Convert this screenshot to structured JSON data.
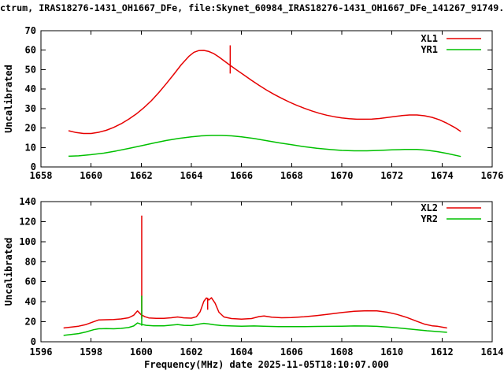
{
  "title": "ctrum, IRAS18276-1431_OH1667_DFe, file:Skynet_60984_IRAS18276-1431_OH1667_DFe_141267_91749.",
  "colors": {
    "background": "#ffffff",
    "text": "#000000",
    "xl_line": "#e60000",
    "yr_line": "#00c000"
  },
  "chart_data": [
    {
      "type": "line",
      "title": "",
      "xlabel": "",
      "ylabel": "Uncalibrated",
      "xlim": [
        1658,
        1676
      ],
      "ylim": [
        0,
        70
      ],
      "xticks": [
        1658,
        1660,
        1662,
        1664,
        1666,
        1668,
        1670,
        1672,
        1674,
        1676
      ],
      "yticks": [
        0,
        10,
        20,
        30,
        40,
        50,
        60,
        70
      ],
      "grid": false,
      "legend": {
        "position": "top-right",
        "entries": [
          {
            "label": "XL1",
            "color": "#e60000"
          },
          {
            "label": "YR1",
            "color": "#00c000"
          }
        ]
      },
      "series": [
        {
          "name": "XL1",
          "color": "#e60000",
          "points": [
            [
              1659.1,
              18.6
            ],
            [
              1659.4,
              17.7
            ],
            [
              1659.7,
              17.2
            ],
            [
              1660.0,
              17.2
            ],
            [
              1660.3,
              17.8
            ],
            [
              1660.6,
              18.8
            ],
            [
              1660.9,
              20.3
            ],
            [
              1661.2,
              22.2
            ],
            [
              1661.5,
              24.5
            ],
            [
              1661.8,
              27.2
            ],
            [
              1662.1,
              30.4
            ],
            [
              1662.4,
              34.0
            ],
            [
              1662.7,
              38.2
            ],
            [
              1663.0,
              42.8
            ],
            [
              1663.3,
              47.6
            ],
            [
              1663.6,
              52.6
            ],
            [
              1663.9,
              56.8
            ],
            [
              1664.1,
              58.9
            ],
            [
              1664.3,
              59.8
            ],
            [
              1664.5,
              59.9
            ],
            [
              1664.7,
              59.3
            ],
            [
              1664.9,
              58.2
            ],
            [
              1665.1,
              56.5
            ],
            [
              1665.3,
              54.6
            ],
            [
              1665.55,
              52.2
            ],
            [
              1665.8,
              49.9
            ],
            [
              1666.1,
              47.2
            ],
            [
              1666.4,
              44.5
            ],
            [
              1666.7,
              41.9
            ],
            [
              1667.0,
              39.5
            ],
            [
              1667.3,
              37.3
            ],
            [
              1667.6,
              35.3
            ],
            [
              1667.9,
              33.4
            ],
            [
              1668.2,
              31.7
            ],
            [
              1668.5,
              30.2
            ],
            [
              1668.8,
              28.8
            ],
            [
              1669.1,
              27.6
            ],
            [
              1669.4,
              26.6
            ],
            [
              1669.7,
              25.8
            ],
            [
              1670.0,
              25.2
            ],
            [
              1670.3,
              24.8
            ],
            [
              1670.6,
              24.5
            ],
            [
              1670.9,
              24.5
            ],
            [
              1671.2,
              24.6
            ],
            [
              1671.5,
              24.9
            ],
            [
              1671.8,
              25.4
            ],
            [
              1672.1,
              25.9
            ],
            [
              1672.4,
              26.4
            ],
            [
              1672.7,
              26.7
            ],
            [
              1673.0,
              26.7
            ],
            [
              1673.3,
              26.3
            ],
            [
              1673.6,
              25.5
            ],
            [
              1673.9,
              24.2
            ],
            [
              1674.2,
              22.4
            ],
            [
              1674.5,
              20.3
            ],
            [
              1674.75,
              18.2
            ]
          ]
        },
        {
          "name": "YR1",
          "color": "#00c000",
          "points": [
            [
              1659.1,
              5.5
            ],
            [
              1659.5,
              5.7
            ],
            [
              1660.0,
              6.3
            ],
            [
              1660.5,
              7.1
            ],
            [
              1661.0,
              8.2
            ],
            [
              1661.5,
              9.5
            ],
            [
              1662.0,
              10.9
            ],
            [
              1662.5,
              12.3
            ],
            [
              1663.0,
              13.6
            ],
            [
              1663.5,
              14.7
            ],
            [
              1664.0,
              15.5
            ],
            [
              1664.4,
              16.0
            ],
            [
              1664.8,
              16.2
            ],
            [
              1665.2,
              16.2
            ],
            [
              1665.6,
              16.0
            ],
            [
              1666.0,
              15.5
            ],
            [
              1666.5,
              14.6
            ],
            [
              1667.0,
              13.5
            ],
            [
              1667.5,
              12.4
            ],
            [
              1668.0,
              11.4
            ],
            [
              1668.5,
              10.4
            ],
            [
              1669.0,
              9.6
            ],
            [
              1669.5,
              9.0
            ],
            [
              1670.0,
              8.5
            ],
            [
              1670.5,
              8.3
            ],
            [
              1671.0,
              8.3
            ],
            [
              1671.5,
              8.5
            ],
            [
              1672.0,
              8.8
            ],
            [
              1672.5,
              9.0
            ],
            [
              1673.0,
              9.0
            ],
            [
              1673.4,
              8.6
            ],
            [
              1673.8,
              7.9
            ],
            [
              1674.2,
              6.9
            ],
            [
              1674.75,
              5.4
            ]
          ]
        }
      ],
      "spikes": [
        {
          "series": "XL1",
          "color": "#e60000",
          "x": 1665.55,
          "y_from": 48.0,
          "y_to": 62.5
        }
      ]
    },
    {
      "type": "line",
      "title": "",
      "xlabel": "Frequency(MHz) date 2025-11-05T18:10:07.000",
      "ylabel": "Uncalibrated",
      "xlim": [
        1596,
        1614
      ],
      "ylim": [
        0,
        140
      ],
      "xticks": [
        1596,
        1598,
        1600,
        1602,
        1604,
        1606,
        1608,
        1610,
        1612,
        1614
      ],
      "yticks": [
        0,
        20,
        40,
        60,
        80,
        100,
        120,
        140
      ],
      "grid": false,
      "legend": {
        "position": "top-right",
        "entries": [
          {
            "label": "XL2",
            "color": "#e60000"
          },
          {
            "label": "YR2",
            "color": "#00c000"
          }
        ]
      },
      "series": [
        {
          "name": "XL2",
          "color": "#e60000",
          "points": [
            [
              1596.9,
              13.8
            ],
            [
              1597.2,
              14.6
            ],
            [
              1597.5,
              15.6
            ],
            [
              1597.8,
              17.2
            ],
            [
              1598.1,
              20.0
            ],
            [
              1598.3,
              21.8
            ],
            [
              1598.6,
              22.0
            ],
            [
              1598.9,
              22.2
            ],
            [
              1599.2,
              22.8
            ],
            [
              1599.5,
              24.0
            ],
            [
              1599.7,
              26.5
            ],
            [
              1599.85,
              30.8
            ],
            [
              1600.0,
              27.0
            ],
            [
              1600.15,
              25.0
            ],
            [
              1600.3,
              23.8
            ],
            [
              1600.6,
              23.4
            ],
            [
              1600.9,
              23.4
            ],
            [
              1601.2,
              24.0
            ],
            [
              1601.45,
              24.8
            ],
            [
              1601.7,
              23.9
            ],
            [
              1602.0,
              23.6
            ],
            [
              1602.2,
              25.0
            ],
            [
              1602.35,
              30.0
            ],
            [
              1602.5,
              40.5
            ],
            [
              1602.6,
              43.8
            ],
            [
              1602.7,
              41.8
            ],
            [
              1602.8,
              44.0
            ],
            [
              1602.95,
              38.5
            ],
            [
              1603.1,
              29.5
            ],
            [
              1603.3,
              24.8
            ],
            [
              1603.6,
              23.2
            ],
            [
              1604.0,
              22.6
            ],
            [
              1604.4,
              23.2
            ],
            [
              1604.7,
              25.2
            ],
            [
              1604.9,
              25.8
            ],
            [
              1605.2,
              24.6
            ],
            [
              1605.6,
              24.0
            ],
            [
              1606.0,
              24.2
            ],
            [
              1606.5,
              25.0
            ],
            [
              1607.0,
              26.2
            ],
            [
              1607.5,
              27.6
            ],
            [
              1608.0,
              29.2
            ],
            [
              1608.5,
              30.4
            ],
            [
              1609.0,
              31.0
            ],
            [
              1609.4,
              30.8
            ],
            [
              1609.8,
              29.6
            ],
            [
              1610.2,
              27.4
            ],
            [
              1610.6,
              24.2
            ],
            [
              1611.0,
              20.4
            ],
            [
              1611.3,
              17.6
            ],
            [
              1611.6,
              16.0
            ],
            [
              1611.8,
              15.6
            ],
            [
              1612.0,
              14.6
            ],
            [
              1612.2,
              13.8
            ]
          ]
        },
        {
          "name": "YR2",
          "color": "#00c000",
          "points": [
            [
              1596.9,
              6.4
            ],
            [
              1597.2,
              7.2
            ],
            [
              1597.5,
              8.2
            ],
            [
              1597.8,
              9.8
            ],
            [
              1598.1,
              12.0
            ],
            [
              1598.3,
              13.0
            ],
            [
              1598.6,
              13.2
            ],
            [
              1598.9,
              13.0
            ],
            [
              1599.2,
              13.4
            ],
            [
              1599.5,
              14.2
            ],
            [
              1599.7,
              15.8
            ],
            [
              1599.85,
              18.8
            ],
            [
              1600.0,
              17.5
            ],
            [
              1600.2,
              16.4
            ],
            [
              1600.5,
              16.0
            ],
            [
              1600.9,
              16.0
            ],
            [
              1601.2,
              16.6
            ],
            [
              1601.45,
              17.2
            ],
            [
              1601.7,
              16.4
            ],
            [
              1602.0,
              16.2
            ],
            [
              1602.3,
              17.6
            ],
            [
              1602.5,
              18.4
            ],
            [
              1602.7,
              17.8
            ],
            [
              1602.9,
              17.0
            ],
            [
              1603.2,
              16.2
            ],
            [
              1603.6,
              15.8
            ],
            [
              1604.0,
              15.6
            ],
            [
              1604.5,
              15.8
            ],
            [
              1605.0,
              15.4
            ],
            [
              1605.5,
              15.2
            ],
            [
              1606.0,
              15.2
            ],
            [
              1606.5,
              15.2
            ],
            [
              1607.0,
              15.3
            ],
            [
              1607.5,
              15.4
            ],
            [
              1608.0,
              15.6
            ],
            [
              1608.5,
              15.8
            ],
            [
              1609.0,
              15.7
            ],
            [
              1609.4,
              15.4
            ],
            [
              1609.8,
              14.8
            ],
            [
              1610.2,
              14.0
            ],
            [
              1610.6,
              13.0
            ],
            [
              1611.0,
              12.0
            ],
            [
              1611.4,
              11.0
            ],
            [
              1611.8,
              10.2
            ],
            [
              1612.0,
              9.8
            ],
            [
              1612.2,
              9.4
            ]
          ]
        }
      ],
      "spikes": [
        {
          "series": "XL2",
          "color": "#e60000",
          "x": 1600.02,
          "y_from": 23.0,
          "y_to": 126.0
        },
        {
          "series": "YR2",
          "color": "#00c000",
          "x": 1600.02,
          "y_from": 16.0,
          "y_to": 46.0
        },
        {
          "series": "XL2",
          "color": "#e60000",
          "x": 1602.65,
          "y_from": 32.0,
          "y_to": 44.0
        }
      ]
    }
  ]
}
